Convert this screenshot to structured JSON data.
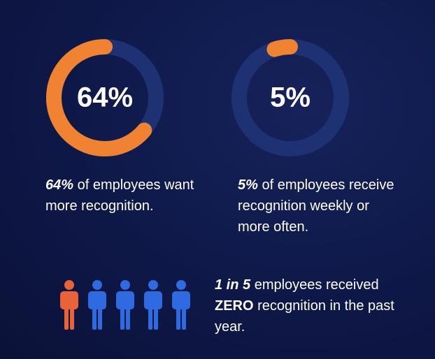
{
  "gauges": [
    {
      "value": 64,
      "label": "64%",
      "caption": "of employees want more recognition."
    },
    {
      "value": 5,
      "label": "5%",
      "caption": "of employees receive recognition weekly or more often."
    }
  ],
  "people": {
    "bold1": "1 in 5",
    "text1": "employees received",
    "bold2": "ZERO",
    "text2": "recognition in the past year."
  }
}
